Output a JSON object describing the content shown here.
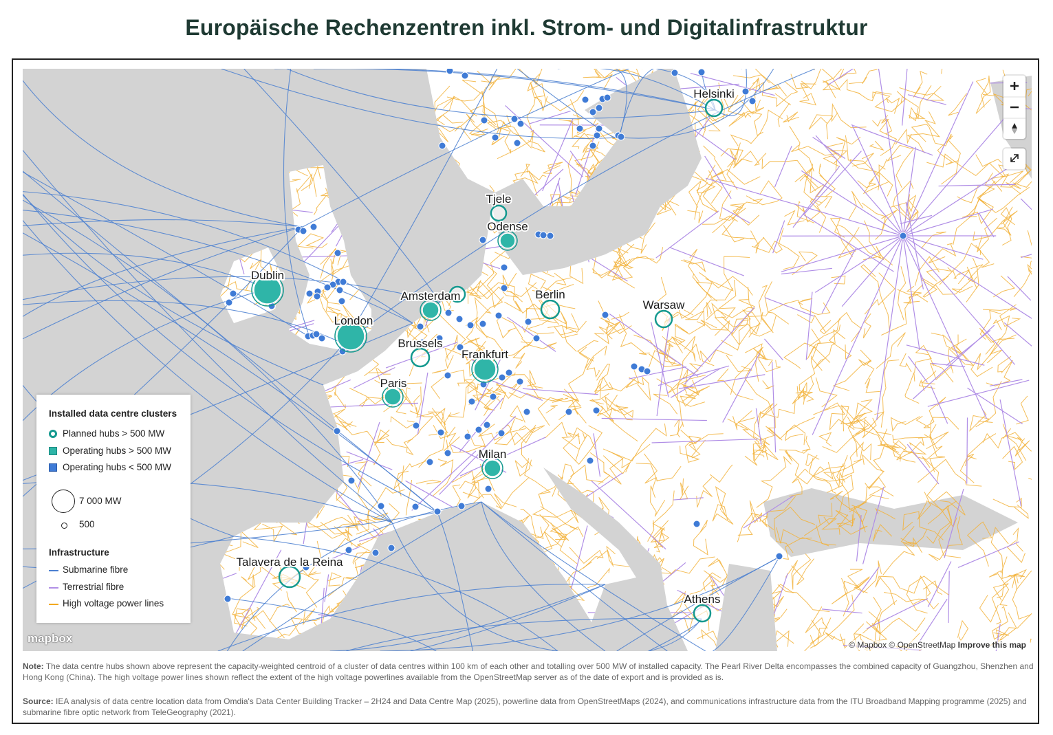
{
  "title": "Europäische Rechenzentren inkl. Strom- und Digitalinfrastruktur",
  "map_labels": [
    "Helsinki",
    "Tjele",
    "Odense",
    "Dublin",
    "Amsterdam",
    "Berlin",
    "Warsaw",
    "London",
    "Brussels",
    "Frankfurt",
    "Paris",
    "Milan",
    "Talavera de la Reina",
    "Athens"
  ],
  "legend": {
    "clusters_title": "Installed data centre clusters",
    "clusters": [
      "Planned hubs > 500 MW",
      "Operating hubs > 500 MW",
      "Operating hubs < 500 MW"
    ],
    "sizes": [
      "7 000 MW",
      "500"
    ],
    "infrastructure_title": "Infrastructure",
    "infrastructure": [
      "Submarine fibre",
      "Terrestrial fibre",
      "High voltage power lines"
    ]
  },
  "map_attribution": {
    "logo": "mapbox",
    "credits": "© Mapbox © OpenStreetMap",
    "improve": "Improve this map"
  },
  "note": {
    "label": "Note:",
    "text": "The data centre hubs shown above represent the capacity-weighted centroid of a cluster of data centres within 100 km of each other and totalling over 500 MW of installed capacity. The Pearl River Delta encompasses the combined capacity of Guangzhou, Shenzhen and Hong Kong (China). The high voltage power lines shown reflect the extent of the high voltage powerlines available from the OpenStreetMap server as of the date of export and is provided as is."
  },
  "source": {
    "label": "Source:",
    "text": "IEA analysis of data centre location data from Omdia's Data Center Building Tracker – 2H24 and Data Centre Map (2025), powerline data from OpenStreetMaps (2024), and communications infrastructure data from the ITU Broadband Mapping programme (2025) and submarine fibre optic network from TeleGeography (2021)."
  }
}
